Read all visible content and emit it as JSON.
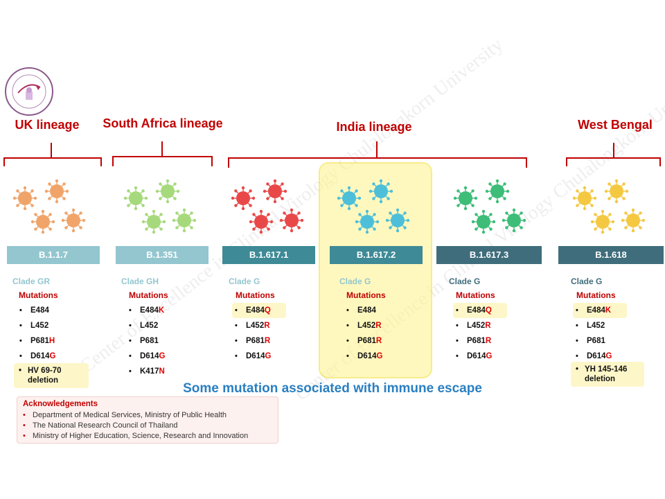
{
  "logo": {
    "icon": "center-of-excellence-seal-icon"
  },
  "lineages": [
    {
      "title": "UK lineage"
    },
    {
      "title": "South Africa lineage"
    },
    {
      "title": "India lineage"
    },
    {
      "title": "West Bengal"
    }
  ],
  "variants": [
    {
      "name": "B.1.1.7",
      "bar_color": "#93c6cf",
      "clade": "Clade GR",
      "clade_color": "#93c6cf",
      "virus_color": "#f0a46a",
      "mutations": [
        {
          "base": "E484",
          "suffix": "",
          "highlight": false
        },
        {
          "base": "L452",
          "suffix": "",
          "highlight": false
        },
        {
          "base": "P681",
          "suffix": "H",
          "highlight": false
        },
        {
          "base": "D614",
          "suffix": "G",
          "highlight": false
        }
      ],
      "deletion": [
        "HV 69-70",
        "deletion"
      ]
    },
    {
      "name": "B.1.351",
      "bar_color": "#93c6cf",
      "clade": "Clade GH",
      "clade_color": "#93c6cf",
      "virus_color": "#a6d97b",
      "mutations": [
        {
          "base": "E484",
          "suffix": "K",
          "highlight": false
        },
        {
          "base": "L452",
          "suffix": "",
          "highlight": false
        },
        {
          "base": "P681",
          "suffix": "",
          "highlight": false
        },
        {
          "base": "D614",
          "suffix": "G",
          "highlight": false
        },
        {
          "base": "K417",
          "suffix": "N",
          "highlight": false
        }
      ]
    },
    {
      "name": "B.1.617.1",
      "bar_color": "#3e8a96",
      "clade": "Clade G",
      "clade_color": "#93c6cf",
      "virus_color": "#e94848",
      "mutations": [
        {
          "base": "E484",
          "suffix": "Q",
          "highlight": true
        },
        {
          "base": "L452",
          "suffix": "R",
          "highlight": false
        },
        {
          "base": "P681",
          "suffix": "R",
          "highlight": false
        },
        {
          "base": "D614",
          "suffix": "G",
          "highlight": false
        }
      ]
    },
    {
      "name": "B.1.617.2",
      "bar_color": "#3e8a96",
      "clade": "Clade G",
      "clade_color": "#93c6cf",
      "virus_color": "#4dbfd9",
      "mutations": [
        {
          "base": "E484",
          "suffix": "",
          "highlight": false
        },
        {
          "base": "L452",
          "suffix": "R",
          "highlight": false
        },
        {
          "base": "P681",
          "suffix": "R",
          "highlight": false
        },
        {
          "base": "D614",
          "suffix": "G",
          "highlight": false
        }
      ]
    },
    {
      "name": "B.1.617.3",
      "bar_color": "#3f6d7c",
      "clade": "Clade G",
      "clade_color": "#3f6d7c",
      "virus_color": "#3dbd78",
      "mutations": [
        {
          "base": "E484",
          "suffix": "Q",
          "highlight": true
        },
        {
          "base": "L452",
          "suffix": "R",
          "highlight": false
        },
        {
          "base": "P681",
          "suffix": "R",
          "highlight": false
        },
        {
          "base": "D614",
          "suffix": "G",
          "highlight": false
        }
      ]
    },
    {
      "name": "B.1.618",
      "bar_color": "#3f6d7c",
      "clade": "Clade G",
      "clade_color": "#3f6d7c",
      "virus_color": "#f5c842",
      "mutations": [
        {
          "base": "E484",
          "suffix": "K",
          "highlight": true
        },
        {
          "base": "L452",
          "suffix": "",
          "highlight": false
        },
        {
          "base": "P681",
          "suffix": "",
          "highlight": false
        },
        {
          "base": "D614",
          "suffix": "G",
          "highlight": false
        }
      ],
      "deletion": [
        "YH 145-146",
        "deletion"
      ]
    }
  ],
  "mutations_label": "Mutations",
  "caption": "Some mutation associated with immune escape",
  "acknowledgements": {
    "title": "Acknowledgements",
    "items": [
      "Department of Medical Services, Ministry of Public Health",
      "The National Research Council of Thailand",
      "Ministry of Higher Education, Science, Research and Innovation"
    ]
  },
  "watermark": "Center of Excellence in Clinical Virology Chulalongkorn University"
}
